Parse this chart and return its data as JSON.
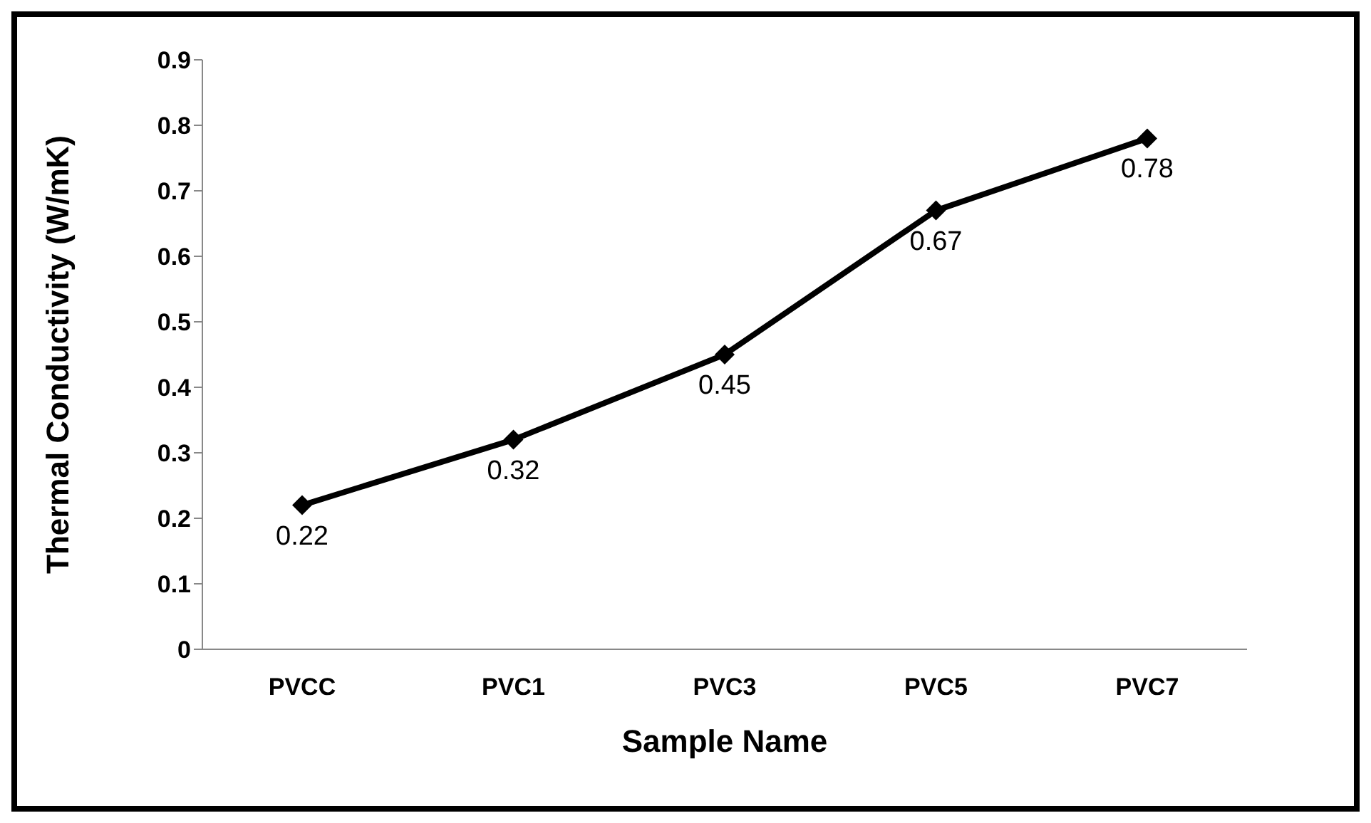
{
  "chart_data": {
    "type": "line",
    "xlabel": "Sample Name",
    "ylabel": "Thermal Conductivity (W/mK)",
    "categories": [
      "PVCC",
      "PVC1",
      "PVC3",
      "PVC5",
      "PVC7"
    ],
    "series": [
      {
        "color": "#000000",
        "values": [
          0.22,
          0.32,
          0.45,
          0.67,
          0.78
        ]
      }
    ],
    "ylim": [
      0,
      0.9
    ],
    "yticks": [
      0,
      0.1,
      0.2,
      0.3,
      0.4,
      0.5,
      0.6,
      0.7,
      0.8,
      0.9
    ],
    "grid": false,
    "legend": false,
    "marker": "diamond",
    "line_style": "solid",
    "data_labels": true
  }
}
